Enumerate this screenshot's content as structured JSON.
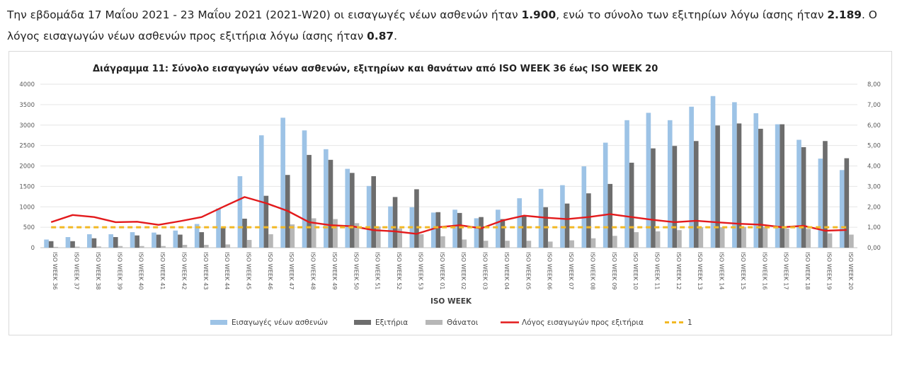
{
  "intro": {
    "t1": "Την εβδομάδα 17 Μαΐου 2021 - 23 Μαΐου 2021 (2021-W20) οι εισαγωγές νέων ασθενών ήταν ",
    "v1": "1.900",
    "t2": ", ενώ το σύνολο των εξιτηρίων λόγω ίασης ήταν ",
    "v2": "2.189",
    "t3": ". Ο λόγος εισαγωγών νέων ασθενών προς εξιτήρια λόγω ίασης ήταν ",
    "v3": "0.87",
    "t4": "."
  },
  "chart_data": {
    "type": "bar",
    "title": "Διάγραμμα 11: Σύνολο εισαγωγών νέων ασθενών, εξιτηρίων και θανάτων από ISO WEEK 36 έως ISO WEEK 20",
    "xlabel": "ISO WEEK",
    "ylim": [
      0,
      4000
    ],
    "y2lim": [
      0,
      8
    ],
    "yticks": [
      "4000",
      "3500",
      "3000",
      "2500",
      "2000",
      "1500",
      "1000",
      "500",
      "0"
    ],
    "y2ticks": [
      "8,00",
      "7,00",
      "6,00",
      "5,00",
      "4,00",
      "3,00",
      "2,00",
      "1,00",
      "0,00"
    ],
    "categories": [
      "ISO WEEK 36",
      "ISO WEEK 37",
      "ISO WEEK 38",
      "ISO WEEK 39",
      "ISO WEEK 40",
      "ISO WEEK 41",
      "ISO WEEK 42",
      "ISO WEEK 43",
      "ISO WEEK 44",
      "ISO WEEK 45",
      "ISO WEEK 46",
      "ISO WEEK 47",
      "ISO WEEK 48",
      "ISO WEEK 49",
      "ISO WEEK 50",
      "ISO WEEK 51",
      "ISO WEEK 52",
      "ISO WEEK 53",
      "ISO WEEK 01",
      "ISO WEEK 02",
      "ISO WEEK 03",
      "ISO WEEK 04",
      "ISO WEEK 05",
      "ISO WEEK 06",
      "ISO WEEK 07",
      "ISO WEEK 08",
      "ISO WEEK 09",
      "ISO WEEK 10",
      "ISO WEEK 11",
      "ISO WEEK 12",
      "ISO WEEK 13",
      "ISO WEEK 14",
      "ISO WEEK 15",
      "ISO WEEK 16",
      "ISO WEEK 17",
      "ISO WEEK 18",
      "ISO WEEK 19",
      "ISO WEEK 20"
    ],
    "series": [
      {
        "name": "Εισαγωγές νέων ασθενών",
        "type": "bar",
        "color": "#9dc3e6",
        "values": [
          200,
          260,
          330,
          330,
          380,
          370,
          420,
          580,
          960,
          1750,
          2750,
          3180,
          2870,
          2410,
          1930,
          1510,
          1010,
          990,
          860,
          930,
          720,
          930,
          1210,
          1440,
          1530,
          1990,
          2570,
          3120,
          3300,
          3120,
          3450,
          3710,
          3560,
          3290,
          3020,
          2640,
          2180,
          1900
        ]
      },
      {
        "name": "Εξιτήρια",
        "type": "bar",
        "color": "#6d6d6d",
        "values": [
          160,
          160,
          230,
          260,
          300,
          320,
          320,
          380,
          480,
          710,
          1270,
          1780,
          2270,
          2150,
          1830,
          1750,
          1240,
          1430,
          870,
          850,
          750,
          700,
          780,
          990,
          1080,
          1330,
          1560,
          2080,
          2430,
          2490,
          2610,
          2990,
          3040,
          2910,
          3020,
          2460,
          2610,
          2189
        ]
      },
      {
        "name": "Θάνατοι",
        "type": "bar",
        "color": "#b7b7b7",
        "values": [
          20,
          25,
          30,
          40,
          40,
          40,
          70,
          70,
          80,
          190,
          330,
          570,
          720,
          700,
          600,
          520,
          470,
          330,
          280,
          200,
          170,
          170,
          170,
          150,
          180,
          230,
          290,
          380,
          400,
          430,
          500,
          500,
          510,
          510,
          470,
          460,
          350,
          320
        ]
      },
      {
        "name": "Λόγος εισαγωγών προς εξιτήρια",
        "type": "line",
        "axis": "right",
        "color": "#e31a1c",
        "values": [
          1.25,
          1.6,
          1.5,
          1.25,
          1.27,
          1.12,
          1.3,
          1.5,
          2.0,
          2.48,
          2.18,
          1.8,
          1.25,
          1.1,
          1.05,
          0.86,
          0.8,
          0.68,
          1.0,
          1.1,
          0.95,
          1.33,
          1.57,
          1.47,
          1.4,
          1.5,
          1.64,
          1.5,
          1.36,
          1.25,
          1.32,
          1.24,
          1.17,
          1.13,
          1.0,
          1.07,
          0.83,
          0.87
        ]
      },
      {
        "name": "1",
        "type": "line",
        "axis": "right",
        "dashed": true,
        "color": "#f2b824",
        "values": [
          1,
          1,
          1,
          1,
          1,
          1,
          1,
          1,
          1,
          1,
          1,
          1,
          1,
          1,
          1,
          1,
          1,
          1,
          1,
          1,
          1,
          1,
          1,
          1,
          1,
          1,
          1,
          1,
          1,
          1,
          1,
          1,
          1,
          1,
          1,
          1,
          1,
          1
        ]
      }
    ]
  }
}
